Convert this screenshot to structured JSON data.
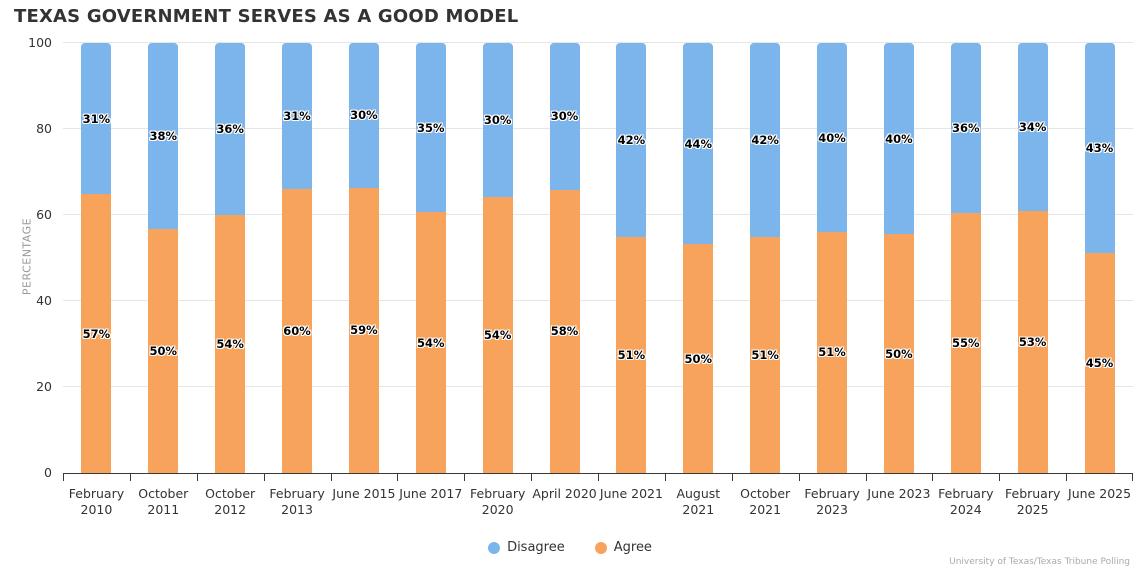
{
  "page": {
    "title": "TEXAS GOVERNMENT SERVES AS A GOOD MODEL",
    "credits": "University of Texas/Texas Tribune Polling"
  },
  "colors": {
    "disagree_blue": "#7cb5ec",
    "agree_orange": "#f7a35c",
    "grid_line": "#e6e6e6",
    "axis_line": "#3a3a3a",
    "title_text": "#333333",
    "axis_label_text": "#333333",
    "y_axis_title_text": "#999999",
    "credits_text": "#aaaaaa"
  },
  "chart_data": {
    "type": "bar",
    "subtype": "stacked-percent-column",
    "title": "TEXAS GOVERNMENT SERVES AS A GOOD MODEL",
    "xlabel": "",
    "ylabel": "PERCENTAGE",
    "ylim": [
      0,
      100
    ],
    "yticks": [
      0,
      20,
      40,
      60,
      80,
      100
    ],
    "grid": true,
    "legend_position": "bottom",
    "data_label_format": "{value}%",
    "categories": [
      "February 2010",
      "October 2011",
      "October 2012",
      "February 2013",
      "June 2015",
      "June 2017",
      "February 2020",
      "April 2020",
      "June 2021",
      "August 2021",
      "October 2021",
      "February 2023",
      "June 2023",
      "February 2024",
      "February 2025",
      "June 2025"
    ],
    "category_lines": [
      [
        "February",
        "2010"
      ],
      [
        "October",
        "2011"
      ],
      [
        "October",
        "2012"
      ],
      [
        "February",
        "2013"
      ],
      [
        "June 2015"
      ],
      [
        "June 2017"
      ],
      [
        "February",
        "2020"
      ],
      [
        "April 2020"
      ],
      [
        "June 2021"
      ],
      [
        "August",
        "2021"
      ],
      [
        "October",
        "2021"
      ],
      [
        "February",
        "2023"
      ],
      [
        "June 2023"
      ],
      [
        "February",
        "2024"
      ],
      [
        "February",
        "2025"
      ],
      [
        "June 2025"
      ]
    ],
    "series": [
      {
        "name": "Disagree",
        "color": "#7cb5ec",
        "values": [
          31,
          38,
          36,
          31,
          30,
          35,
          30,
          30,
          42,
          44,
          42,
          40,
          40,
          36,
          34,
          43
        ]
      },
      {
        "name": "Agree",
        "color": "#f7a35c",
        "values": [
          57,
          50,
          54,
          60,
          59,
          54,
          54,
          58,
          51,
          50,
          51,
          51,
          50,
          55,
          53,
          45
        ]
      }
    ]
  }
}
